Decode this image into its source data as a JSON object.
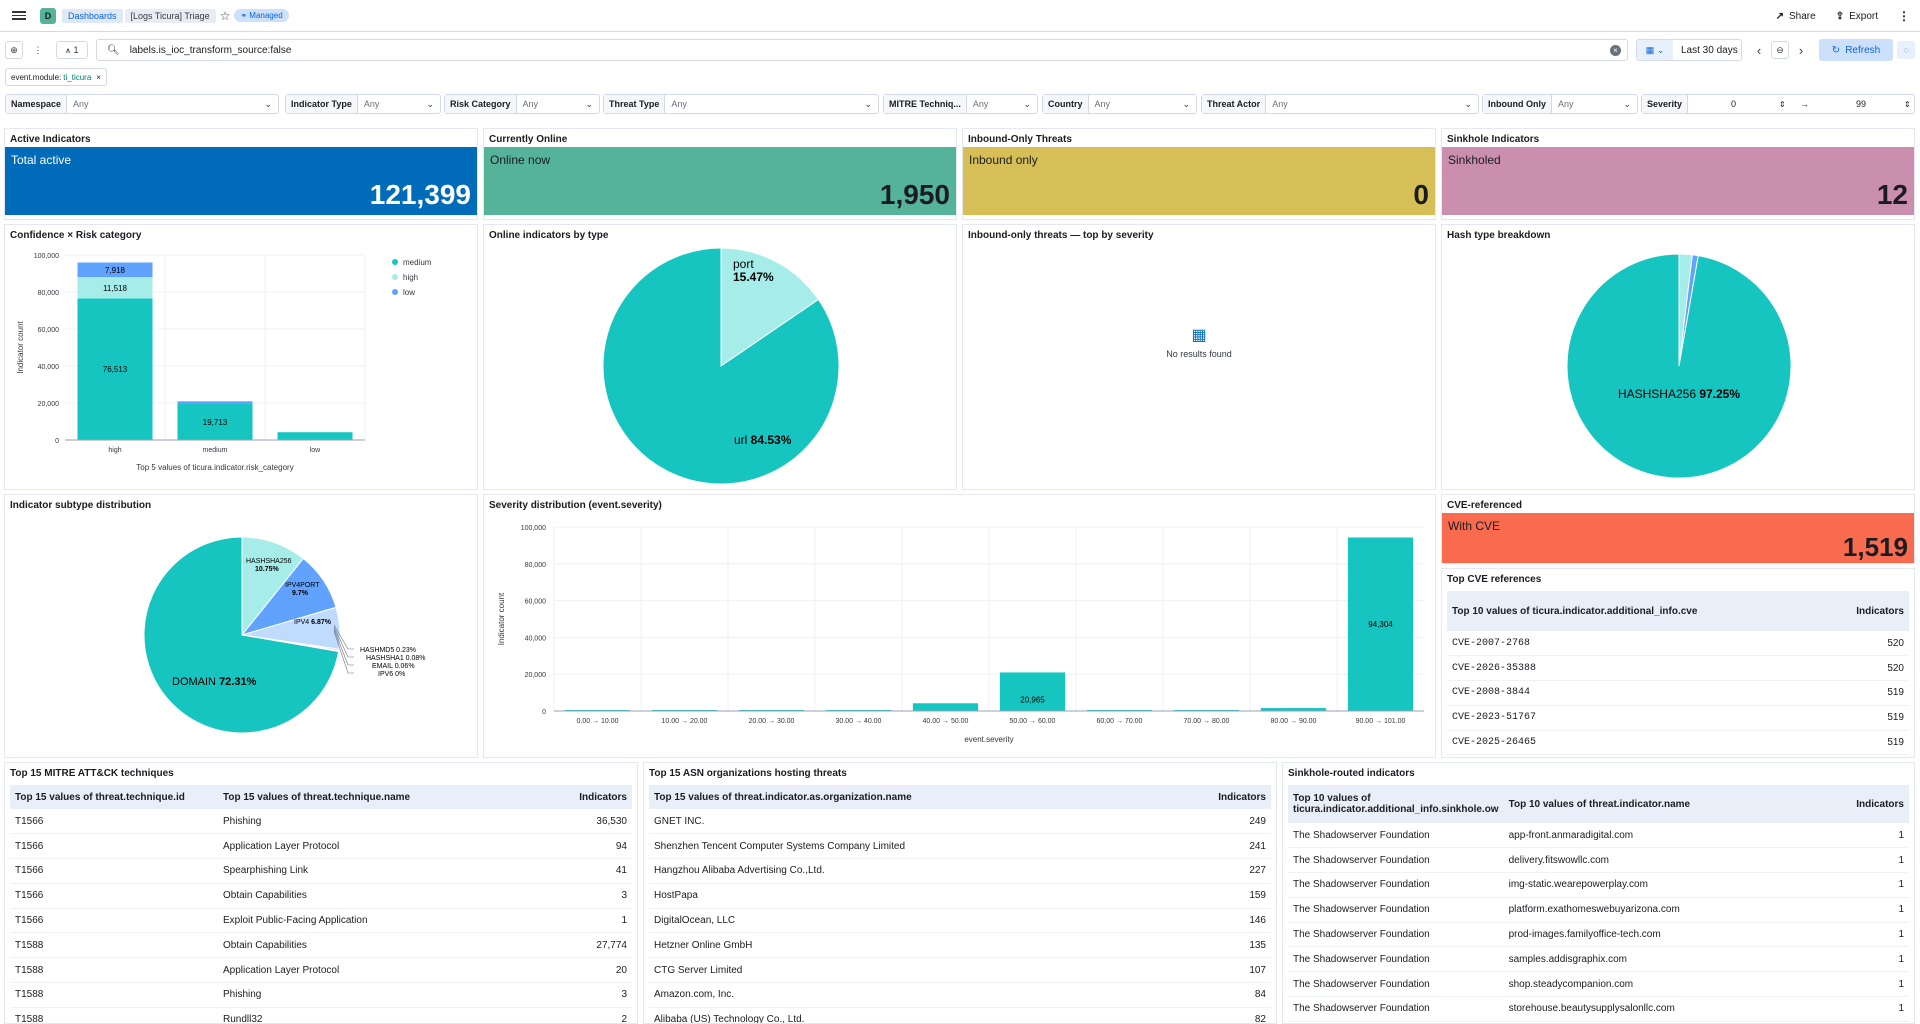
{
  "header": {
    "logo_letter": "D",
    "breadcrumb_dashboards": "Dashboards",
    "breadcrumb_current": "[Logs Ticura] Triage",
    "managed_badge": "Managed",
    "share_label": "Share",
    "export_label": "Export"
  },
  "query": {
    "filter_count": "1",
    "text": "labels.is_ioc_transform_source:false",
    "date_range": "Last 30 days",
    "refresh_label": "Refresh"
  },
  "filter_pill": {
    "field": "event.module:",
    "value": "ti_ticura"
  },
  "controls": [
    {
      "label": "Namespace",
      "value": "Any"
    },
    {
      "label": "Indicator Type",
      "value": "Any"
    },
    {
      "label": "Risk Category",
      "value": "Any"
    },
    {
      "label": "Threat Type",
      "value": "Any"
    },
    {
      "label": "MITRE Techniq...",
      "value": "Any"
    },
    {
      "label": "Country",
      "value": "Any"
    },
    {
      "label": "Threat Actor",
      "value": "Any"
    },
    {
      "label": "Inbound Only",
      "value": "Any"
    }
  ],
  "severity_control": {
    "label": "Severity",
    "min": "0",
    "max": "99",
    "arrow": "→"
  },
  "metrics": [
    {
      "title": "Active Indicators",
      "label": "Total active",
      "value": "121,399",
      "color": "#006bb8"
    },
    {
      "title": "Currently Online",
      "label": "Online now",
      "value": "1,950",
      "color": "#54b399"
    },
    {
      "title": "Inbound-Only Threats",
      "label": "Inbound only",
      "value": "0",
      "color": "#d6bf57"
    },
    {
      "title": "Sinkhole Indicators",
      "label": "Sinkholed",
      "value": "12",
      "color": "#ca8eae"
    }
  ],
  "panels": {
    "confidence_title": "Confidence × Risk category",
    "online_type_title": "Online indicators by type",
    "inbound_sev_title": "Inbound-only threats — top by severity",
    "no_results": "No results found",
    "hash_title": "Hash type breakdown",
    "subtype_title": "Indicator subtype distribution",
    "severity_title": "Severity distribution (event.severity)",
    "cve_title": "CVE-referenced",
    "cve_label": "With CVE",
    "cve_value": "1,519",
    "cve_color": "#f86b4f",
    "top_cve_title": "Top CVE references",
    "mitre_title": "Top 15 MITRE ATT&CK techniques",
    "asn_title": "Top 15 ASN organizations hosting threats",
    "sinkhole_title": "Sinkhole-routed indicators"
  },
  "chart_data": [
    {
      "type": "bar",
      "title": "Confidence × Risk category",
      "categories": [
        "high",
        "medium",
        "low"
      ],
      "series": [
        {
          "name": "medium",
          "color": "#16c5c0",
          "values": [
            76513,
            19713,
            4200
          ]
        },
        {
          "name": "high",
          "color": "#a6edea",
          "values": [
            11518,
            0,
            0
          ]
        },
        {
          "name": "low",
          "color": "#61a2ff",
          "values": [
            7918,
            1200,
            0
          ]
        }
      ],
      "data_labels": {
        "high": [
          "76,513",
          "11,518",
          "7,918"
        ],
        "medium": [
          "19,713"
        ]
      },
      "ylim": [
        0,
        100000
      ],
      "yticks": [
        "0",
        "20,000",
        "40,000",
        "60,000",
        "80,000",
        "100,000"
      ],
      "ylabel": "Indicator count",
      "xlabel": "Top 5 values of ticura.indicator.risk_category",
      "legend": "top-right"
    },
    {
      "type": "pie",
      "title": "Online indicators by type",
      "slices": [
        {
          "label": "url",
          "pct": "84.53%",
          "value": 84.53,
          "color": "#16c5c0"
        },
        {
          "label": "port",
          "pct": "15.47%",
          "value": 15.47,
          "color": "#a6edea"
        }
      ]
    },
    {
      "type": "pie",
      "title": "Hash type breakdown",
      "slices": [
        {
          "label": "HASHSHA256",
          "pct": "97.25%",
          "value": 97.25,
          "color": "#16c5c0"
        },
        {
          "label": "",
          "value": 1.9,
          "color": "#a6edea"
        },
        {
          "label": "",
          "value": 0.85,
          "color": "#61a2ff"
        }
      ]
    },
    {
      "type": "pie",
      "title": "Indicator subtype distribution",
      "slices": [
        {
          "label": "DOMAIN",
          "pct": "72.31%",
          "value": 72.31,
          "color": "#16c5c0"
        },
        {
          "label": "HASHSHA256",
          "pct": "10.75%",
          "value": 10.75,
          "color": "#a6edea"
        },
        {
          "label": "IPV4PORT",
          "pct": "9.7%",
          "value": 9.7,
          "color": "#61a2ff"
        },
        {
          "label": "IPV4",
          "pct": "6.87%",
          "value": 6.87,
          "color": "#bfdbff"
        },
        {
          "label": "HASHMD5",
          "pct": "0.23%",
          "value": 0.23,
          "color": "#ee72a6"
        },
        {
          "label": "HASHSHA1",
          "pct": "0.08%",
          "value": 0.08,
          "color": "#f7a0c7"
        },
        {
          "label": "EMAIL",
          "pct": "0.06%",
          "value": 0.06,
          "color": "#f6726a"
        },
        {
          "label": "IPV6",
          "pct": "0%",
          "value": 0.0,
          "color": "#ffc9c2"
        }
      ]
    },
    {
      "type": "bar",
      "title": "Severity distribution (event.severity)",
      "categories": [
        "0.00 → 10.00",
        "10.00 → 20.00",
        "20.00 → 30.00",
        "30.00 → 40.00",
        "40.00 → 50.00",
        "50.00 → 60.00",
        "60.00 → 70.00",
        "70.00 → 80.00",
        "80.00 → 90.00",
        "90.00 → 101.00"
      ],
      "values": [
        300,
        200,
        200,
        200,
        4200,
        20965,
        150,
        150,
        1600,
        94304
      ],
      "data_labels": {
        "5": "20,965",
        "9": "94,304"
      },
      "ylim": [
        0,
        100000
      ],
      "yticks": [
        "0",
        "20,000",
        "40,000",
        "60,000",
        "80,000",
        "100,000"
      ],
      "ylabel": "Indicator count",
      "xlabel": "event.severity",
      "color": "#16c5c0"
    }
  ],
  "cve_table": {
    "headers": [
      "Top 10 values of ticura.indicator.additional_info.cve",
      "Indicators"
    ],
    "rows": [
      [
        "CVE-2007-2768",
        "520"
      ],
      [
        "CVE-2026-35388",
        "520"
      ],
      [
        "CVE-2008-3844",
        "519"
      ],
      [
        "CVE-2023-51767",
        "519"
      ],
      [
        "CVE-2025-26465",
        "519"
      ]
    ]
  },
  "mitre_table": {
    "headers": [
      "Top 15 values of threat.technique.id",
      "Top 15 values of threat.technique.name",
      "Indicators"
    ],
    "rows": [
      [
        "T1566",
        "Phishing",
        "36,530"
      ],
      [
        "T1566",
        "Application Layer Protocol",
        "94"
      ],
      [
        "T1566",
        "Spearphishing Link",
        "41"
      ],
      [
        "T1566",
        "Obtain Capabilities",
        "3"
      ],
      [
        "T1566",
        "Exploit Public-Facing Application",
        "1"
      ],
      [
        "T1588",
        "Obtain Capabilities",
        "27,774"
      ],
      [
        "T1588",
        "Application Layer Protocol",
        "20"
      ],
      [
        "T1588",
        "Phishing",
        "3"
      ],
      [
        "T1588",
        "Rundll32",
        "2"
      ]
    ]
  },
  "asn_table": {
    "headers": [
      "Top 15 values of threat.indicator.as.organization.name",
      "Indicators"
    ],
    "rows": [
      [
        "GNET INC.",
        "249"
      ],
      [
        "Shenzhen Tencent Computer Systems Company Limited",
        "241"
      ],
      [
        "Hangzhou Alibaba Advertising Co.,Ltd.",
        "227"
      ],
      [
        "HostPapa",
        "159"
      ],
      [
        "DigitalOcean, LLC",
        "146"
      ],
      [
        "Hetzner Online GmbH",
        "135"
      ],
      [
        "CTG Server Limited",
        "107"
      ],
      [
        "Amazon.com, Inc.",
        "84"
      ],
      [
        "Alibaba (US) Technology Co., Ltd.",
        "82"
      ]
    ]
  },
  "sinkhole_table": {
    "headers": [
      "Top 10 values of ticura.indicator.additional_info.sinkhole.ow",
      "Top 10 values of threat.indicator.name",
      "Indicators"
    ],
    "rows": [
      [
        "The Shadowserver Foundation",
        "app-front.anmaradigital.com",
        "1"
      ],
      [
        "The Shadowserver Foundation",
        "delivery.fitswowllc.com",
        "1"
      ],
      [
        "The Shadowserver Foundation",
        "img-static.wearepowerplay.com",
        "1"
      ],
      [
        "The Shadowserver Foundation",
        "platform.exathomeswebuyarizona.com",
        "1"
      ],
      [
        "The Shadowserver Foundation",
        "prod-images.familyoffice-tech.com",
        "1"
      ],
      [
        "The Shadowserver Foundation",
        "samples.addisgraphix.com",
        "1"
      ],
      [
        "The Shadowserver Foundation",
        "shop.steadycompanion.com",
        "1"
      ],
      [
        "The Shadowserver Foundation",
        "storehouse.beautysupplysalonllc.com",
        "1"
      ]
    ]
  }
}
